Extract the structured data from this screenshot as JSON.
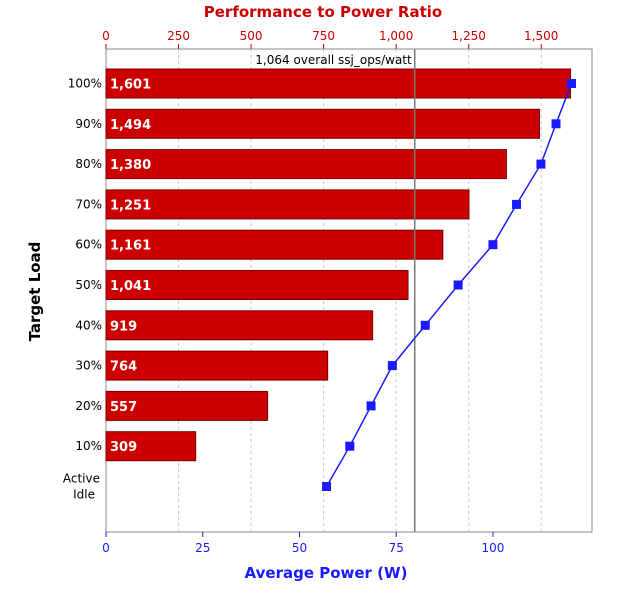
{
  "chart_data": {
    "type": "bar",
    "orientation": "horizontal",
    "title_top": "Performance to Power Ratio",
    "xlabel_bottom": "Average Power (W)",
    "ylabel": "Target Load",
    "categories": [
      "100%",
      "90%",
      "80%",
      "70%",
      "60%",
      "50%",
      "40%",
      "30%",
      "20%",
      "10%",
      "Active Idle"
    ],
    "category_lines": [
      [
        "100%"
      ],
      [
        "90%"
      ],
      [
        "80%"
      ],
      [
        "70%"
      ],
      [
        "60%"
      ],
      [
        "50%"
      ],
      [
        "40%"
      ],
      [
        "30%"
      ],
      [
        "20%"
      ],
      [
        "10%"
      ],
      [
        "Active",
        "Idle"
      ]
    ],
    "series": [
      {
        "axis": "top",
        "type": "bar",
        "color": "#cc0000",
        "values": [
          1601,
          1494,
          1380,
          1251,
          1161,
          1041,
          919,
          764,
          557,
          309,
          null
        ],
        "labels": [
          "1,601",
          "1,494",
          "1,380",
          "1,251",
          "1,161",
          "1,041",
          "919",
          "764",
          "557",
          "309",
          ""
        ]
      },
      {
        "axis": "bottom",
        "type": "line",
        "color": "#1a1aff",
        "values": [
          120.3,
          116.3,
          112.4,
          106.1,
          100.0,
          91.0,
          82.5,
          74.0,
          68.5,
          63.0,
          57.0
        ]
      }
    ],
    "top_axis": {
      "range": [
        0,
        1675
      ],
      "ticks": [
        0,
        250,
        500,
        750,
        1000,
        1250,
        1500
      ],
      "tick_labels": [
        "0",
        "250",
        "500",
        "750",
        "1,000",
        "1,250",
        "1,500"
      ]
    },
    "bottom_axis": {
      "range": [
        0,
        125.6
      ],
      "ticks": [
        0,
        25,
        50,
        75,
        100
      ],
      "tick_labels": [
        "0",
        "25",
        "50",
        "75",
        "100"
      ]
    },
    "reference_line": {
      "value": 1064,
      "label": "1,064 overall ssj_ops/watt"
    },
    "grid": "vertical-dashed"
  }
}
